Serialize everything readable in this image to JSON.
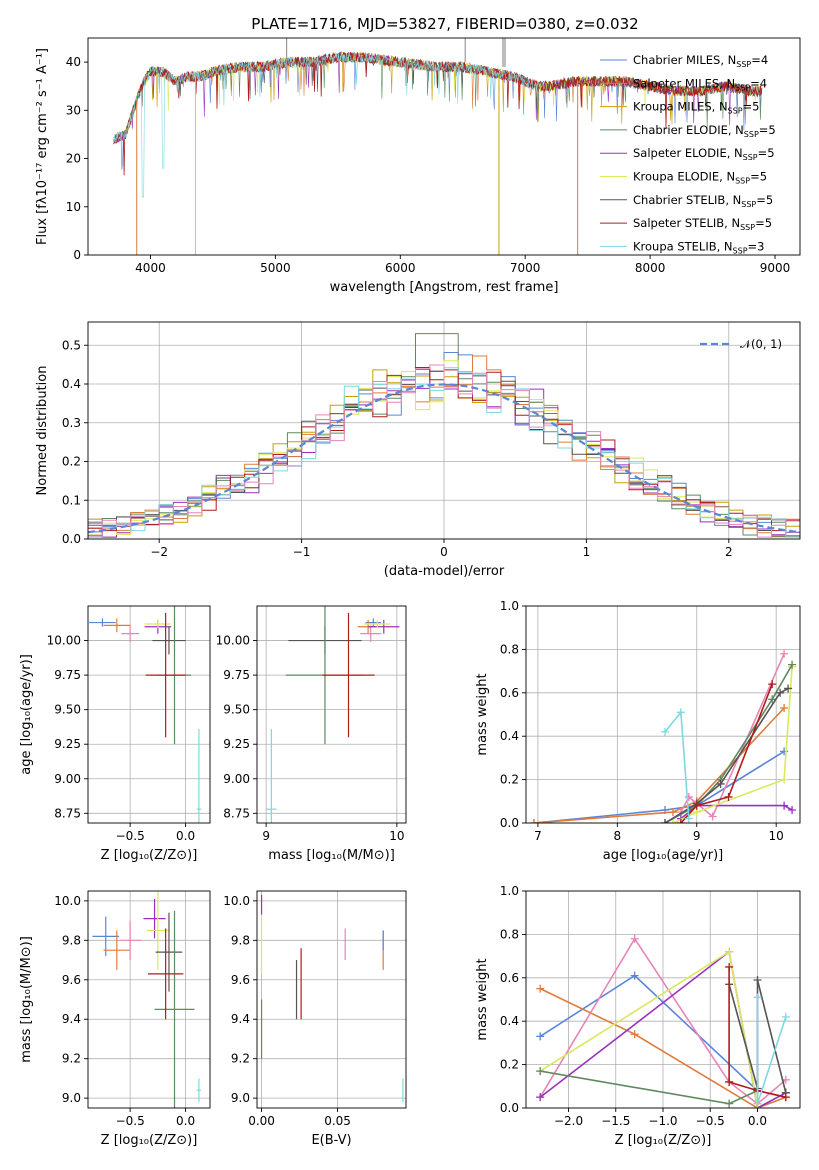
{
  "figure_title": "PLATE=1716, MJD=53827, FIBERID=0380, z=0.032",
  "series_colors": {
    "chabrier_miles": "#5b86d6",
    "salpeter_miles": "#e07b39",
    "kroupa_miles": "#c8a000",
    "chabrier_elodie": "#5f8a5f",
    "salpeter_elodie": "#9b30c0",
    "kroupa_elodie": "#dbe85a",
    "chabrier_stelib": "#555555",
    "salpeter_stelib": "#b01c1c",
    "kroupa_stelib": "#7fd8e0",
    "pink": "#e884b8"
  },
  "chart_data": [
    {
      "id": "spectrum",
      "type": "line",
      "title": "PLATE=1716, MJD=53827, FIBERID=0380, z=0.032",
      "xlabel": "wavelength [Angstrom, rest frame]",
      "ylabel": "Flux [fλ10⁻¹⁷ erg cm⁻² s⁻¹ A⁻¹]",
      "xlim": [
        3500,
        9200
      ],
      "ylim": [
        0,
        45
      ],
      "xticks": [
        4000,
        5000,
        6000,
        7000,
        8000,
        9000
      ],
      "yticks": [
        0,
        10,
        20,
        30,
        40
      ],
      "grid": false,
      "legend_position": "top-right",
      "legend": [
        {
          "label": "Chabrier MILES, N",
          "sub": "SSP",
          "tail": "=4",
          "color_key": "chabrier_miles"
        },
        {
          "label": "Salpeter MILES, N",
          "sub": "SSP",
          "tail": "=4",
          "color_key": "salpeter_miles"
        },
        {
          "label": "Kroupa MILES, N",
          "sub": "SSP",
          "tail": "=5",
          "color_key": "kroupa_miles"
        },
        {
          "label": "Chabrier ELODIE, N",
          "sub": "SSP",
          "tail": "=5",
          "color_key": "chabrier_elodie"
        },
        {
          "label": "Salpeter ELODIE, N",
          "sub": "SSP",
          "tail": "=5",
          "color_key": "salpeter_elodie"
        },
        {
          "label": "Kroupa ELODIE, N",
          "sub": "SSP",
          "tail": "=5",
          "color_key": "kroupa_elodie"
        },
        {
          "label": "Chabrier STELIB, N",
          "sub": "SSP",
          "tail": "=5",
          "color_key": "chabrier_stelib"
        },
        {
          "label": "Salpeter STELIB, N",
          "sub": "SSP",
          "tail": "=5",
          "color_key": "salpeter_stelib"
        },
        {
          "label": "Kroupa STELIB, N",
          "sub": "SSP",
          "tail": "=3",
          "color_key": "kroupa_stelib"
        }
      ],
      "continuum": [
        [
          3700,
          24
        ],
        [
          3800,
          25
        ],
        [
          3900,
          33
        ],
        [
          3950,
          36
        ],
        [
          4000,
          38
        ],
        [
          4100,
          38
        ],
        [
          4200,
          36
        ],
        [
          4300,
          37
        ],
        [
          4400,
          37
        ],
        [
          4500,
          38
        ],
        [
          4700,
          39
        ],
        [
          4900,
          39
        ],
        [
          5100,
          40
        ],
        [
          5300,
          40
        ],
        [
          5500,
          41
        ],
        [
          5700,
          41
        ],
        [
          6000,
          40
        ],
        [
          6300,
          39
        ],
        [
          6500,
          39
        ],
        [
          6700,
          38
        ],
        [
          6900,
          37
        ],
        [
          7100,
          35
        ],
        [
          7200,
          35
        ],
        [
          7400,
          36
        ],
        [
          7600,
          36
        ],
        [
          7800,
          36
        ],
        [
          8000,
          35
        ],
        [
          8200,
          34
        ],
        [
          8400,
          34
        ],
        [
          8600,
          35
        ],
        [
          8800,
          34
        ],
        [
          8900,
          34
        ]
      ],
      "deep_lines": [
        [
          3890,
          "salpeter_miles",
          0
        ],
        [
          4360,
          "kroupa_stelib",
          0
        ],
        [
          6790,
          "kroupa_miles",
          0
        ],
        [
          7420,
          "salpeter_miles",
          0
        ]
      ]
    },
    {
      "id": "residuals",
      "type": "line",
      "xlabel": "(data-model)/error",
      "ylabel": "Normed distribution",
      "xlim": [
        -2.5,
        2.5
      ],
      "ylim": [
        0,
        0.56
      ],
      "xticks": [
        -2,
        -1,
        0,
        1,
        2
      ],
      "yticks": [
        0.0,
        0.1,
        0.2,
        0.3,
        0.4,
        0.5
      ],
      "grid": true,
      "legend_position": "top-right",
      "legend": [
        {
          "label": "𝒩(0, 1)",
          "style": "dashed",
          "color_key": "chabrier_miles"
        }
      ],
      "bin_width": 0.1,
      "normal_mean": 0,
      "normal_sigma": 1
    },
    {
      "id": "age_vs_Z",
      "type": "scatter",
      "xlabel": "Z [log₁₀(Z/Z⊙)]",
      "ylabel": "age  [log₁₀(age/yr)]",
      "xlim": [
        -0.88,
        0.22
      ],
      "ylim": [
        8.68,
        10.25
      ],
      "xticks": [
        -0.5,
        0.0
      ],
      "yticks": [
        8.75,
        9.0,
        9.25,
        9.5,
        9.75,
        10.0
      ],
      "grid": true,
      "points": [
        {
          "x": -0.75,
          "y": 10.13,
          "xe": 0.12,
          "ye": 0.03,
          "c": "chabrier_miles"
        },
        {
          "x": -0.62,
          "y": 10.11,
          "xe": 0.12,
          "ye": 0.05,
          "c": "salpeter_miles"
        },
        {
          "x": -0.5,
          "y": 10.05,
          "xe": 0.08,
          "ye": 0.06,
          "c": "pink"
        },
        {
          "x": -0.25,
          "y": 10.1,
          "xe": 0.12,
          "ye": 0.05,
          "c": "salpeter_elodie"
        },
        {
          "x": -0.25,
          "y": 10.12,
          "xe": 0.12,
          "ye": 0.03,
          "c": "kroupa_elodie"
        },
        {
          "x": -0.15,
          "y": 10.0,
          "xe": 0.15,
          "ye": 0.1,
          "c": "chabrier_stelib"
        },
        {
          "x": -0.1,
          "y": 9.75,
          "xe": 0.15,
          "ye": 0.5,
          "c": "chabrier_elodie"
        },
        {
          "x": -0.18,
          "y": 9.75,
          "xe": 0.18,
          "ye": 0.45,
          "c": "salpeter_stelib"
        },
        {
          "x": 0.12,
          "y": 8.78,
          "xe": 0.02,
          "ye": 0.58,
          "c": "kroupa_stelib"
        }
      ]
    },
    {
      "id": "age_vs_mass",
      "type": "scatter",
      "xlabel": "mass [log₁₀(M/M⊙)]",
      "ylabel": "",
      "xlim": [
        8.93,
        10.07
      ],
      "ylim": [
        8.68,
        10.25
      ],
      "xticks": [
        9,
        10
      ],
      "yticks": [
        8.75,
        9.0,
        9.25,
        9.5,
        9.75,
        10.0
      ],
      "grid": true,
      "points": [
        {
          "x": 9.82,
          "y": 10.13,
          "xe": 0.06,
          "ye": 0.03,
          "c": "chabrier_miles"
        },
        {
          "x": 9.78,
          "y": 10.1,
          "xe": 0.08,
          "ye": 0.05,
          "c": "salpeter_miles"
        },
        {
          "x": 9.8,
          "y": 10.05,
          "xe": 0.08,
          "ye": 0.06,
          "c": "pink"
        },
        {
          "x": 9.9,
          "y": 10.1,
          "xe": 0.12,
          "ye": 0.05,
          "c": "salpeter_elodie"
        },
        {
          "x": 9.85,
          "y": 10.12,
          "xe": 0.1,
          "ye": 0.03,
          "c": "kroupa_elodie"
        },
        {
          "x": 9.45,
          "y": 10.0,
          "xe": 0.28,
          "ye": 0.1,
          "c": "chabrier_stelib"
        },
        {
          "x": 9.45,
          "y": 9.75,
          "xe": 0.3,
          "ye": 0.5,
          "c": "chabrier_elodie"
        },
        {
          "x": 9.63,
          "y": 9.75,
          "xe": 0.2,
          "ye": 0.45,
          "c": "salpeter_stelib"
        },
        {
          "x": 9.04,
          "y": 8.78,
          "xe": 0.04,
          "ye": 0.58,
          "c": "kroupa_stelib"
        }
      ]
    },
    {
      "id": "massweight_vs_age",
      "type": "line",
      "xlabel": "age  [log₁₀(age/yr)]",
      "ylabel": "mass weight",
      "xlim": [
        6.85,
        10.3
      ],
      "ylim": [
        0,
        1.0
      ],
      "xticks": [
        7,
        8,
        9,
        10
      ],
      "yticks": [
        0.0,
        0.2,
        0.4,
        0.6,
        0.8,
        1.0
      ],
      "grid": true,
      "series": [
        {
          "c": "chabrier_miles",
          "x": [
            6.95,
            8.6,
            9.0,
            10.1
          ],
          "y": [
            0.0,
            0.06,
            0.08,
            0.33
          ]
        },
        {
          "c": "salpeter_miles",
          "x": [
            6.95,
            8.7,
            9.0,
            10.1
          ],
          "y": [
            0.0,
            0.05,
            0.1,
            0.53
          ]
        },
        {
          "c": "pink",
          "x": [
            8.8,
            8.9,
            9.0,
            9.2,
            10.1
          ],
          "y": [
            0.05,
            0.12,
            0.09,
            0.03,
            0.78
          ]
        },
        {
          "c": "salpeter_elodie",
          "x": [
            8.8,
            9.0,
            10.1,
            10.2
          ],
          "y": [
            0.02,
            0.08,
            0.08,
            0.06
          ]
        },
        {
          "c": "kroupa_elodie",
          "x": [
            8.7,
            9.0,
            10.1,
            10.2
          ],
          "y": [
            0.0,
            0.05,
            0.2,
            0.72
          ]
        },
        {
          "c": "chabrier_elodie",
          "x": [
            8.6,
            9.0,
            9.3,
            9.95,
            10.2
          ],
          "y": [
            0.0,
            0.08,
            0.2,
            0.57,
            0.73
          ]
        },
        {
          "c": "chabrier_stelib",
          "x": [
            8.6,
            9.0,
            9.3,
            10.05,
            10.15
          ],
          "y": [
            0.0,
            0.09,
            0.18,
            0.6,
            0.62
          ]
        },
        {
          "c": "salpeter_stelib",
          "x": [
            8.8,
            9.0,
            9.4,
            9.95
          ],
          "y": [
            0.0,
            0.08,
            0.12,
            0.64
          ]
        },
        {
          "c": "kroupa_stelib",
          "x": [
            8.6,
            8.8,
            8.9
          ],
          "y": [
            0.42,
            0.51,
            0.02
          ]
        }
      ]
    },
    {
      "id": "mass_vs_Z",
      "type": "scatter",
      "xlabel": "Z [log₁₀(Z/Z⊙)]",
      "ylabel": "mass [log₁₀(M/M⊙)]",
      "xlim": [
        -0.88,
        0.22
      ],
      "ylim": [
        8.95,
        10.05
      ],
      "xticks": [
        -0.5,
        0.0
      ],
      "yticks": [
        9.0,
        9.2,
        9.4,
        9.6,
        9.8,
        10.0
      ],
      "grid": true,
      "points": [
        {
          "x": -0.72,
          "y": 9.82,
          "xe": 0.12,
          "ye": 0.1,
          "c": "chabrier_miles"
        },
        {
          "x": -0.62,
          "y": 9.75,
          "xe": 0.12,
          "ye": 0.1,
          "c": "salpeter_miles"
        },
        {
          "x": -0.5,
          "y": 9.8,
          "xe": 0.1,
          "ye": 0.1,
          "c": "pink"
        },
        {
          "x": -0.28,
          "y": 9.91,
          "xe": 0.1,
          "ye": 0.1,
          "c": "salpeter_elodie"
        },
        {
          "x": -0.25,
          "y": 9.85,
          "xe": 0.1,
          "ye": 0.2,
          "c": "kroupa_elodie"
        },
        {
          "x": -0.15,
          "y": 9.74,
          "xe": 0.12,
          "ye": 0.2,
          "c": "chabrier_stelib"
        },
        {
          "x": -0.1,
          "y": 9.45,
          "xe": 0.18,
          "ye": 0.5,
          "c": "chabrier_elodie"
        },
        {
          "x": -0.18,
          "y": 9.63,
          "xe": 0.16,
          "ye": 0.23,
          "c": "salpeter_stelib"
        },
        {
          "x": 0.12,
          "y": 9.04,
          "xe": 0.02,
          "ye": 0.06,
          "c": "kroupa_stelib"
        }
      ]
    },
    {
      "id": "mass_vs_EBV",
      "type": "scatter",
      "xlabel": "E(B-V)",
      "ylabel": "",
      "xlim": [
        -0.003,
        0.095
      ],
      "ylim": [
        8.95,
        10.05
      ],
      "xticks": [
        0.0,
        0.05
      ],
      "yticks": [
        9.0,
        9.2,
        9.4,
        9.6,
        9.8,
        10.0
      ],
      "grid": true,
      "points": [
        {
          "x": 0.0,
          "y": 9.98,
          "xe": 0,
          "ye": 0.05,
          "c": "salpeter_elodie"
        },
        {
          "x": 0.0,
          "y": 9.78,
          "xe": 0,
          "ye": 0.15,
          "c": "kroupa_elodie"
        },
        {
          "x": 0.0,
          "y": 9.35,
          "xe": 0,
          "ye": 0.15,
          "c": "chabrier_elodie"
        },
        {
          "x": 0.023,
          "y": 9.55,
          "xe": 0,
          "ye": 0.15,
          "c": "chabrier_stelib"
        },
        {
          "x": 0.026,
          "y": 9.58,
          "xe": 0,
          "ye": 0.18,
          "c": "salpeter_stelib"
        },
        {
          "x": 0.055,
          "y": 9.78,
          "xe": 0,
          "ye": 0.08,
          "c": "pink"
        },
        {
          "x": 0.08,
          "y": 9.75,
          "xe": 0,
          "ye": 0.1,
          "c": "salpeter_miles"
        },
        {
          "x": 0.08,
          "y": 9.8,
          "xe": 0,
          "ye": 0.05,
          "c": "chabrier_miles"
        },
        {
          "x": 0.093,
          "y": 9.04,
          "xe": 0,
          "ye": 0.06,
          "c": "kroupa_stelib"
        }
      ]
    },
    {
      "id": "massweight_vs_Z",
      "type": "line",
      "xlabel": "Z [log₁₀(Z/Z⊙)]",
      "ylabel": "mass weight",
      "xlim": [
        -2.45,
        0.45
      ],
      "ylim": [
        0,
        1.0
      ],
      "xticks": [
        -2.0,
        -1.5,
        -1.0,
        -0.5,
        0.0
      ],
      "yticks": [
        0.0,
        0.2,
        0.4,
        0.6,
        0.8,
        1.0
      ],
      "grid": true,
      "series": [
        {
          "c": "chabrier_miles",
          "x": [
            -2.3,
            -1.3,
            0.0,
            0.3
          ],
          "y": [
            0.33,
            0.61,
            0.08,
            0.05
          ]
        },
        {
          "c": "salpeter_miles",
          "x": [
            -2.3,
            -1.3,
            0.0,
            0.3
          ],
          "y": [
            0.55,
            0.34,
            0.0,
            0.05
          ]
        },
        {
          "c": "pink",
          "x": [
            -2.3,
            -1.3,
            -0.3,
            0.0,
            0.3
          ],
          "y": [
            0.05,
            0.78,
            0.12,
            0.02,
            0.13
          ]
        },
        {
          "c": "salpeter_elodie",
          "x": [
            -2.3,
            -0.3,
            0.0,
            0.3
          ],
          "y": [
            0.05,
            0.72,
            0.0,
            0.07
          ]
        },
        {
          "c": "kroupa_elodie",
          "x": [
            -2.3,
            -0.3,
            0.0
          ],
          "y": [
            0.17,
            0.72,
            0.0
          ]
        },
        {
          "c": "chabrier_elodie",
          "x": [
            -2.3,
            -0.3,
            0.0
          ],
          "y": [
            0.17,
            0.02,
            0.08
          ]
        },
        {
          "c": "chabrier_stelib",
          "x": [
            -0.3,
            0.0,
            0.0,
            0.3
          ],
          "y": [
            0.57,
            0.09,
            0.59,
            0.07
          ]
        },
        {
          "c": "salpeter_stelib",
          "x": [
            -0.3,
            -0.3,
            0.0,
            0.3
          ],
          "y": [
            0.65,
            0.12,
            0.08,
            0.05
          ]
        },
        {
          "c": "kroupa_stelib",
          "x": [
            0.0,
            0.0,
            0.3
          ],
          "y": [
            0.51,
            0.02,
            0.42
          ]
        }
      ]
    }
  ]
}
